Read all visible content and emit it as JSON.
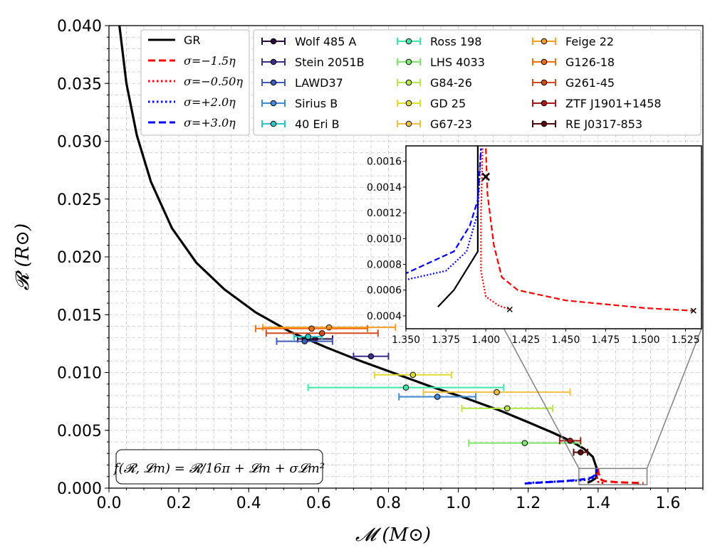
{
  "chart_data": {
    "type": "line",
    "xlabel": "𝓜 (M⊙)",
    "ylabel": "𝓡 (R⊙)",
    "xlim": [
      0.0,
      1.7
    ],
    "ylim": [
      0.0,
      0.04
    ],
    "xticks": [
      "0.0",
      "0.2",
      "0.4",
      "0.6",
      "0.8",
      "1.0",
      "1.2",
      "1.4",
      "1.6"
    ],
    "yticks": [
      "0.000",
      "0.005",
      "0.010",
      "0.015",
      "0.020",
      "0.025",
      "0.030",
      "0.035",
      "0.040"
    ],
    "grid": true,
    "annotation": "f(𝓡, 𝓛m) = 𝓡/16π + 𝓛m + σ𝓛m²",
    "curve_legend": [
      {
        "label": "GR",
        "color": "#000000",
        "dash": "solid"
      },
      {
        "label": "σ=−1.5η",
        "color": "#ff0000",
        "dash": "dashed"
      },
      {
        "label": "σ=−0.50η",
        "color": "#ff0000",
        "dash": "dotted"
      },
      {
        "label": "σ=+2.0η",
        "color": "#0000ff",
        "dash": "dotted"
      },
      {
        "label": "σ=+3.0η",
        "color": "#0000ff",
        "dash": "dashed"
      }
    ],
    "series": [
      {
        "name": "GR",
        "color": "#000000",
        "dash": "solid",
        "x": [
          0.03,
          0.05,
          0.08,
          0.12,
          0.18,
          0.25,
          0.33,
          0.42,
          0.52,
          0.62,
          0.72,
          0.82,
          0.92,
          1.02,
          1.12,
          1.2,
          1.27,
          1.32,
          1.36,
          1.385,
          1.395,
          1.395,
          1.38,
          1.37
        ],
        "y": [
          0.04,
          0.035,
          0.0305,
          0.0265,
          0.0225,
          0.0195,
          0.0172,
          0.0152,
          0.0135,
          0.0122,
          0.011,
          0.0099,
          0.0088,
          0.0078,
          0.0067,
          0.0057,
          0.0048,
          0.0041,
          0.0034,
          0.0027,
          0.0018,
          0.0009,
          0.0006,
          0.00047
        ]
      },
      {
        "name": "σ=−1.5η",
        "color": "#ff0000",
        "dash": "dashed",
        "x": [
          1.4,
          1.401,
          1.405,
          1.41,
          1.42,
          1.45,
          1.5,
          1.53
        ],
        "y": [
          0.0017,
          0.00135,
          0.00095,
          0.0007,
          0.0006,
          0.00052,
          0.00046,
          0.00044
        ]
      },
      {
        "name": "σ=−0.50η",
        "color": "#ff0000",
        "dash": "dotted",
        "x": [
          1.398,
          1.397,
          1.397,
          1.4,
          1.408,
          1.415
        ],
        "y": [
          0.0017,
          0.0012,
          0.00075,
          0.00055,
          0.00048,
          0.00045
        ]
      },
      {
        "name": "σ=+2.0η",
        "color": "#0000ff",
        "dash": "dotted",
        "x": [
          1.2,
          1.3,
          1.35,
          1.375,
          1.388,
          1.395,
          1.397
        ],
        "y": [
          0.00045,
          0.0006,
          0.00068,
          0.00075,
          0.0009,
          0.0012,
          0.0017
        ]
      },
      {
        "name": "σ=+3.0η",
        "color": "#0000ff",
        "dash": "dashed",
        "x": [
          1.19,
          1.3,
          1.35,
          1.38,
          1.39,
          1.395,
          1.397
        ],
        "y": [
          0.0004,
          0.0006,
          0.00073,
          0.0009,
          0.0011,
          0.0013,
          0.0017
        ]
      }
    ],
    "inset": {
      "xlim": [
        1.35,
        1.53
      ],
      "ylim": [
        0.0003,
        0.0017
      ],
      "xticks": [
        "1.350",
        "1.375",
        "1.400",
        "1.425",
        "1.450",
        "1.475",
        "1.500",
        "1.525"
      ],
      "yticks": [
        "0.0004",
        "0.0006",
        "0.0008",
        "0.0010",
        "0.0012",
        "0.0014",
        "0.0016"
      ],
      "markers": [
        {
          "x": 1.4,
          "y": 0.00148
        },
        {
          "x": 1.415,
          "y": 0.00045
        },
        {
          "x": 1.53,
          "y": 0.00044
        }
      ]
    },
    "stars": [
      {
        "name": "Wolf 485 A",
        "color": "#2b0a3d",
        "x": 0.59,
        "xerr": 0.05,
        "y": 0.0129
      },
      {
        "name": "Stein 2051B",
        "color": "#3b2f8a",
        "x": 0.75,
        "xerr": 0.05,
        "y": 0.0114
      },
      {
        "name": "LAWD37",
        "color": "#3f5cb8",
        "x": 0.56,
        "xerr": 0.08,
        "y": 0.0127
      },
      {
        "name": "Sirius B",
        "color": "#3f8bd6",
        "x": 0.94,
        "xerr": 0.11,
        "y": 0.0079
      },
      {
        "name": "40 Eri B",
        "color": "#2ac7c7",
        "x": 0.57,
        "xerr": 0.04,
        "y": 0.0131
      },
      {
        "name": "Ross 198",
        "color": "#3ee8a8",
        "x": 0.85,
        "xerr": 0.28,
        "y": 0.0087
      },
      {
        "name": "LHS 4033",
        "color": "#7ee86a",
        "x": 1.19,
        "xerr": 0.16,
        "y": 0.0039
      },
      {
        "name": "G84-26",
        "color": "#b8e84a",
        "x": 1.14,
        "xerr": 0.13,
        "y": 0.0069
      },
      {
        "name": "GD 25",
        "color": "#dede30",
        "x": 0.87,
        "xerr": 0.11,
        "y": 0.0098
      },
      {
        "name": "G67-23",
        "color": "#f0c040",
        "x": 1.11,
        "xerr": 0.21,
        "y": 0.0083
      },
      {
        "name": "Feige 22",
        "color": "#f5a020",
        "x": 0.63,
        "xerr": 0.19,
        "y": 0.0139
      },
      {
        "name": "G126-18",
        "color": "#f07010",
        "x": 0.58,
        "xerr": 0.16,
        "y": 0.0138
      },
      {
        "name": "G261-45",
        "color": "#d64b1a",
        "x": 0.61,
        "xerr": 0.16,
        "y": 0.0134
      },
      {
        "name": "ZTF J1901+1458",
        "color": "#a81818",
        "x": 1.32,
        "xerr": 0.03,
        "y": 0.0041
      },
      {
        "name": "RE J0317-853",
        "color": "#5a0808",
        "x": 1.35,
        "xerr": 0.02,
        "y": 0.0031
      }
    ]
  }
}
